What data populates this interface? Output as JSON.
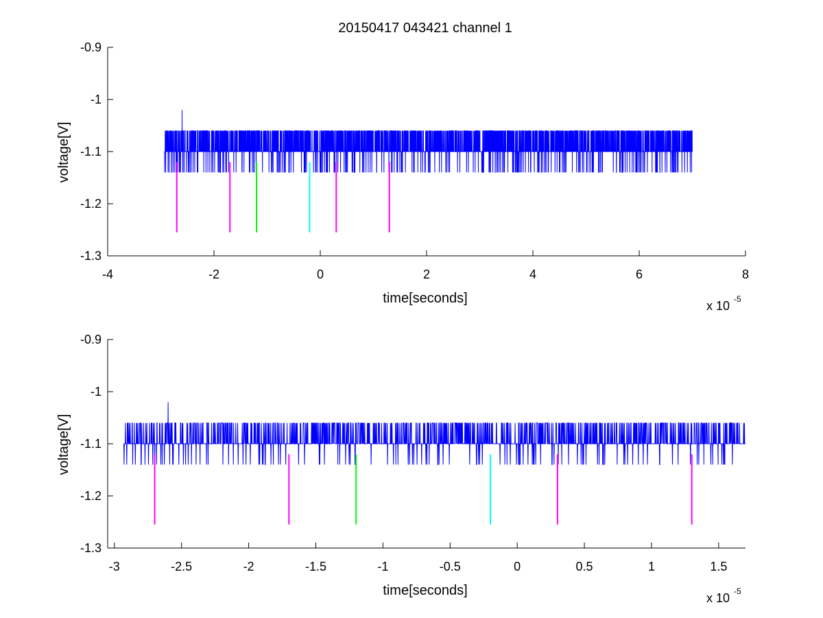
{
  "figure": {
    "title": "20150417 043421 channel 1"
  },
  "colors": {
    "trace": "#0000ff",
    "magenta": "#ff00ff",
    "green": "#00ff00",
    "cyan": "#00ffff"
  },
  "chart_data": [
    {
      "type": "line",
      "xlabel": "time[seconds]",
      "ylabel": "voltage[V]",
      "x_exponent_label": "x 10",
      "x_exponent": "-5",
      "xlim": [
        -4e-05,
        8e-05
      ],
      "ylim": [
        -1.3,
        -0.9
      ],
      "y_reversed": true,
      "xticks": [
        -4e-05,
        -2e-05,
        0,
        2e-05,
        4e-05,
        6e-05,
        8e-05
      ],
      "xtick_labels": [
        "-4",
        "-2",
        "0",
        "2",
        "4",
        "6",
        "8"
      ],
      "yticks": [
        -1.3,
        -1.2,
        -1.1,
        -1.0,
        -0.9
      ],
      "ytick_labels": [
        "-1.3",
        "-1.2",
        "-1.1",
        "-1",
        "-0.9"
      ],
      "grid": false,
      "series": [
        {
          "signal_x_range": [
            -2.93e-05,
            7e-05
          ],
          "baseline": -1.1,
          "upper_level": -1.06,
          "lower_level": -1.14,
          "peak": {
            "x": -2.6e-05,
            "y": -1.02
          }
        }
      ],
      "markers": [
        {
          "x": -2.7e-05,
          "y_top": -1.12,
          "y_bottom": -1.255,
          "color": "magenta"
        },
        {
          "x": -1.7e-05,
          "y_top": -1.12,
          "y_bottom": -1.255,
          "color": "magenta"
        },
        {
          "x": -1.2e-05,
          "y_top": -1.12,
          "y_bottom": -1.255,
          "color": "green"
        },
        {
          "x": -2e-06,
          "y_top": -1.12,
          "y_bottom": -1.255,
          "color": "cyan"
        },
        {
          "x": 3e-06,
          "y_top": -1.12,
          "y_bottom": -1.255,
          "color": "magenta"
        },
        {
          "x": 1.3e-05,
          "y_top": -1.12,
          "y_bottom": -1.255,
          "color": "magenta"
        }
      ]
    },
    {
      "type": "line",
      "xlabel": "time[seconds]",
      "ylabel": "voltage[V]",
      "x_exponent_label": "x 10",
      "x_exponent": "-5",
      "xlim": [
        -3.05e-05,
        1.7e-05
      ],
      "ylim": [
        -1.3,
        -0.9
      ],
      "y_reversed": true,
      "xticks": [
        -3e-05,
        -2.5e-05,
        -2e-05,
        -1.5e-05,
        -1e-05,
        -5e-06,
        0,
        5e-06,
        1e-05,
        1.5e-05
      ],
      "xtick_labels": [
        "-3",
        "-2.5",
        "-2",
        "-1.5",
        "-1",
        "-0.5",
        "0",
        "0.5",
        "1",
        "1.5"
      ],
      "yticks": [
        -1.3,
        -1.2,
        -1.1,
        -1.0,
        -0.9
      ],
      "ytick_labels": [
        "-1.3",
        "-1.2",
        "-1.1",
        "-1",
        "-0.9"
      ],
      "grid": false,
      "series": [
        {
          "signal_x_range": [
            -2.93e-05,
            1.7e-05
          ],
          "baseline": -1.1,
          "upper_level": -1.06,
          "lower_level": -1.14,
          "peak": {
            "x": -2.6e-05,
            "y": -1.02
          }
        }
      ],
      "markers": [
        {
          "x": -2.7e-05,
          "y_top": -1.12,
          "y_bottom": -1.255,
          "color": "magenta"
        },
        {
          "x": -1.7e-05,
          "y_top": -1.12,
          "y_bottom": -1.255,
          "color": "magenta"
        },
        {
          "x": -1.2e-05,
          "y_top": -1.12,
          "y_bottom": -1.255,
          "color": "green"
        },
        {
          "x": -2e-06,
          "y_top": -1.12,
          "y_bottom": -1.255,
          "color": "cyan"
        },
        {
          "x": 3e-06,
          "y_top": -1.12,
          "y_bottom": -1.255,
          "color": "magenta"
        },
        {
          "x": 1.3e-05,
          "y_top": -1.12,
          "y_bottom": -1.255,
          "color": "magenta"
        }
      ]
    }
  ]
}
